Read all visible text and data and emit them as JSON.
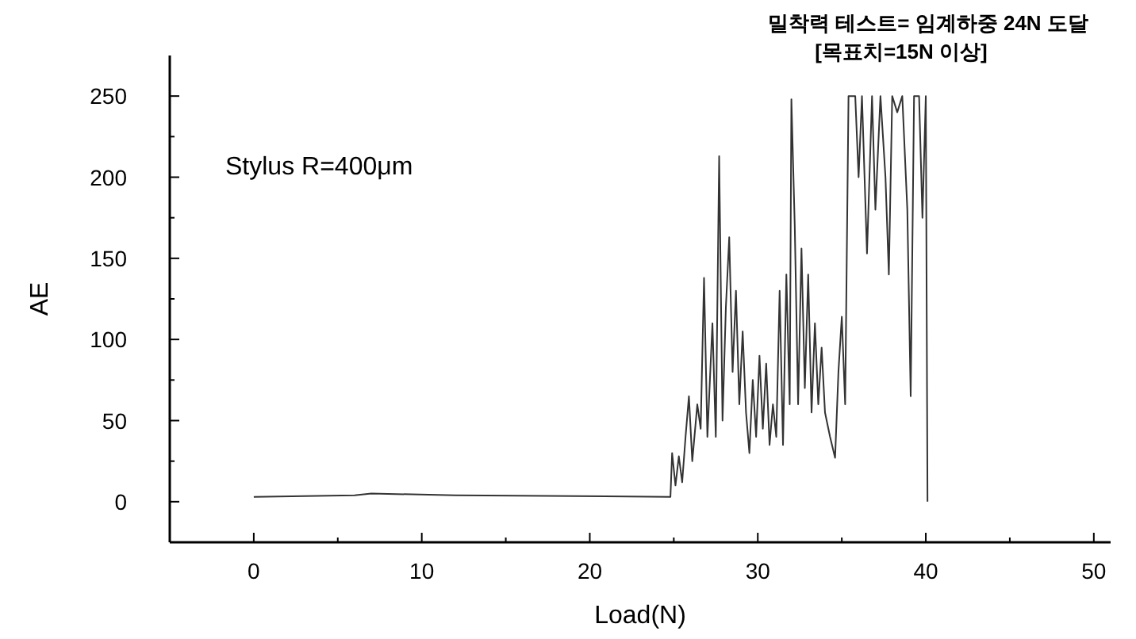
{
  "chart_data": {
    "type": "line",
    "title": "밀착력 테스트= 임계하중 24N 도달",
    "subtitle": "[목표치=15N 이상]",
    "xlabel": "Load(N)",
    "ylabel": "AE",
    "annotations": [
      "Stylus R=400μm"
    ],
    "xlim": [
      -5,
      51
    ],
    "ylim": [
      -25,
      275
    ],
    "xticks": [
      0,
      {
        "value": 5,
        "label": null
      },
      10,
      {
        "value": 15,
        "label": null
      },
      20,
      {
        "value": 25,
        "label": null
      },
      30,
      {
        "value": 35,
        "label": null
      },
      40,
      {
        "value": 45,
        "label": null
      },
      50
    ],
    "yticks": [
      {
        "value": -25,
        "label": null
      },
      0,
      {
        "value": 25,
        "label": null
      },
      50,
      {
        "value": 75,
        "label": null
      },
      100,
      {
        "value": 125,
        "label": null
      },
      150,
      {
        "value": 175,
        "label": null
      },
      200,
      {
        "value": 225,
        "label": null
      },
      250
    ],
    "grid": false,
    "marker": "none",
    "line_style": "solid",
    "series": [
      {
        "color": "#333333",
        "x": [
          0,
          6,
          7,
          12,
          24.8,
          24.9,
          25.1,
          25.3,
          25.5,
          25.7,
          25.9,
          26.1,
          26.4,
          26.6,
          26.8,
          27.0,
          27.3,
          27.5,
          27.7,
          27.9,
          28.1,
          28.3,
          28.5,
          28.7,
          28.9,
          29.1,
          29.3,
          29.5,
          29.7,
          29.9,
          30.1,
          30.3,
          30.5,
          30.7,
          30.9,
          31.1,
          31.3,
          31.5,
          31.7,
          31.9,
          32.0,
          32.2,
          32.4,
          32.6,
          32.8,
          33.0,
          33.2,
          33.4,
          33.6,
          33.8,
          34.0,
          34.3,
          34.6,
          34.8,
          35.0,
          35.2,
          35.4,
          35.8,
          36.0,
          36.2,
          36.5,
          36.8,
          37.0,
          37.3,
          37.6,
          37.8,
          38.0,
          38.3,
          38.6,
          38.9,
          39.1,
          39.3,
          39.6,
          39.8,
          40.0,
          40.1
        ],
        "values": [
          3,
          4,
          5,
          4,
          3,
          30,
          10,
          28,
          12,
          40,
          65,
          25,
          60,
          45,
          138,
          40,
          110,
          40,
          213,
          50,
          120,
          163,
          80,
          130,
          60,
          105,
          55,
          30,
          75,
          40,
          90,
          45,
          85,
          35,
          60,
          40,
          130,
          35,
          140,
          60,
          248,
          170,
          60,
          156,
          70,
          140,
          55,
          110,
          60,
          95,
          55,
          40,
          27,
          80,
          114,
          60,
          250,
          250,
          200,
          250,
          153,
          250,
          180,
          250,
          200,
          140,
          250,
          240,
          250,
          180,
          65,
          250,
          250,
          175,
          250,
          0
        ]
      }
    ]
  }
}
